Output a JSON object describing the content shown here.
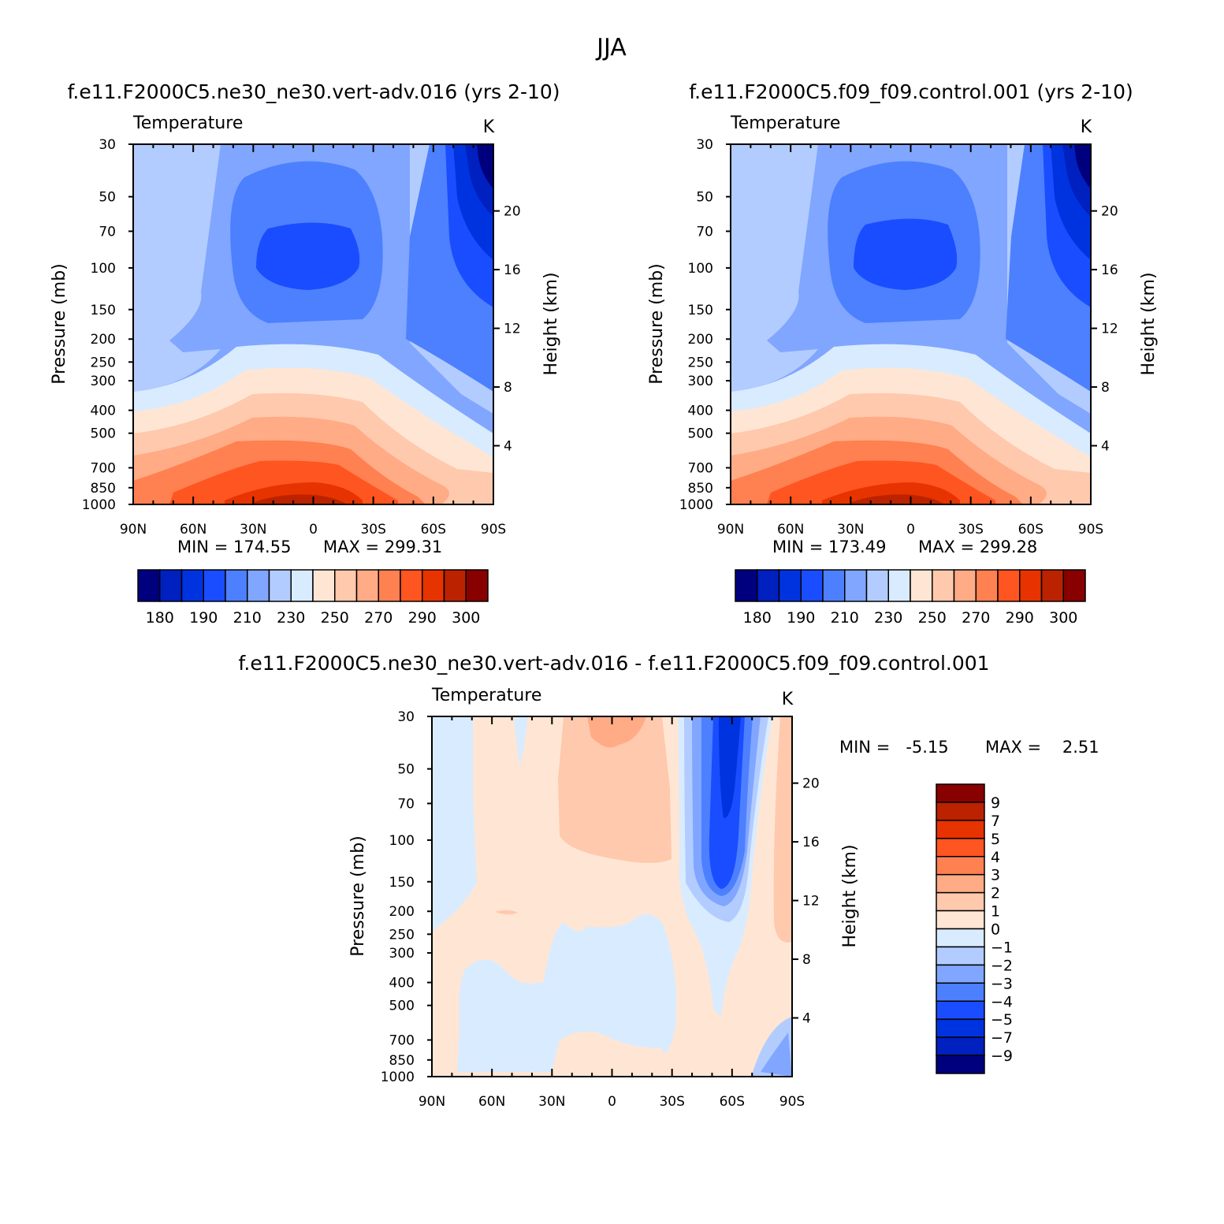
{
  "page_title": "JJA",
  "chart_data": [
    {
      "type": "heatmap",
      "title": "f.e11.F2000C5.ne30_ne30.vert-adv.016 (yrs 2-10)",
      "subtitle": "Temperature",
      "units": "K",
      "xlabel": "",
      "ylabel": "Pressure (mb)",
      "y2label": "Height (km)",
      "x_ticks": [
        "90N",
        "60N",
        "30N",
        "0",
        "30S",
        "60S",
        "90S"
      ],
      "y_ticks": [
        30,
        50,
        70,
        100,
        150,
        200,
        250,
        300,
        400,
        500,
        700,
        850,
        1000
      ],
      "y2_ticks": [
        4,
        8,
        12,
        16,
        20
      ],
      "y_scale": "log",
      "ylim": [
        1000,
        30
      ],
      "min_label": "MIN = 174.55",
      "max_label": "MAX = 299.31",
      "min": 174.55,
      "max": 299.31,
      "colorbar_labels": [
        "180",
        "190",
        "210",
        "230",
        "250",
        "270",
        "290",
        "300"
      ],
      "colorbar_colors": [
        "#00007f",
        "#0020c0",
        "#0033e0",
        "#1a4dff",
        "#4d80ff",
        "#80a6ff",
        "#b3ccff",
        "#d9ebff",
        "#ffe6d4",
        "#ffc9ad",
        "#ffab85",
        "#ff8050",
        "#ff5520",
        "#e63300",
        "#bb2200",
        "#880000"
      ]
    },
    {
      "type": "heatmap",
      "title": "f.e11.F2000C5.f09_f09.control.001 (yrs 2-10)",
      "subtitle": "Temperature",
      "units": "K",
      "xlabel": "",
      "ylabel": "Pressure (mb)",
      "y2label": "Height (km)",
      "x_ticks": [
        "90N",
        "60N",
        "30N",
        "0",
        "30S",
        "60S",
        "90S"
      ],
      "y_ticks": [
        30,
        50,
        70,
        100,
        150,
        200,
        250,
        300,
        400,
        500,
        700,
        850,
        1000
      ],
      "y2_ticks": [
        4,
        8,
        12,
        16,
        20
      ],
      "y_scale": "log",
      "ylim": [
        1000,
        30
      ],
      "min_label": "MIN = 173.49",
      "max_label": "MAX = 299.28",
      "min": 173.49,
      "max": 299.28,
      "colorbar_labels": [
        "180",
        "190",
        "210",
        "230",
        "250",
        "270",
        "290",
        "300"
      ],
      "colorbar_colors": [
        "#00007f",
        "#0020c0",
        "#0033e0",
        "#1a4dff",
        "#4d80ff",
        "#80a6ff",
        "#b3ccff",
        "#d9ebff",
        "#ffe6d4",
        "#ffc9ad",
        "#ffab85",
        "#ff8050",
        "#ff5520",
        "#e63300",
        "#bb2200",
        "#880000"
      ]
    },
    {
      "type": "heatmap",
      "title": "f.e11.F2000C5.ne30_ne30.vert-adv.016 - f.e11.F2000C5.f09_f09.control.001",
      "subtitle": "Temperature",
      "units": "K",
      "xlabel": "",
      "ylabel": "Pressure (mb)",
      "y2label": "Height (km)",
      "x_ticks": [
        "90N",
        "60N",
        "30N",
        "0",
        "30S",
        "60S",
        "90S"
      ],
      "y_ticks": [
        30,
        50,
        70,
        100,
        150,
        200,
        250,
        300,
        400,
        500,
        700,
        850,
        1000
      ],
      "y2_ticks": [
        4,
        8,
        12,
        16,
        20
      ],
      "y_scale": "log",
      "ylim": [
        1000,
        30
      ],
      "min_label": "MIN =   -5.15",
      "max_label": "MAX =    2.51",
      "min": -5.15,
      "max": 2.51,
      "colorbar_labels": [
        "9",
        "7",
        "5",
        "4",
        "3",
        "2",
        "1",
        "0",
        "-1",
        "-2",
        "-3",
        "-4",
        "-5",
        "-7",
        "-9"
      ],
      "colorbar_colors": [
        "#880000",
        "#bb2200",
        "#e63300",
        "#ff5520",
        "#ff8050",
        "#ffab85",
        "#ffc9ad",
        "#ffe6d4",
        "#d9ebff",
        "#b3ccff",
        "#80a6ff",
        "#4d80ff",
        "#1a4dff",
        "#0033e0",
        "#0020c0",
        "#00007f"
      ]
    }
  ]
}
